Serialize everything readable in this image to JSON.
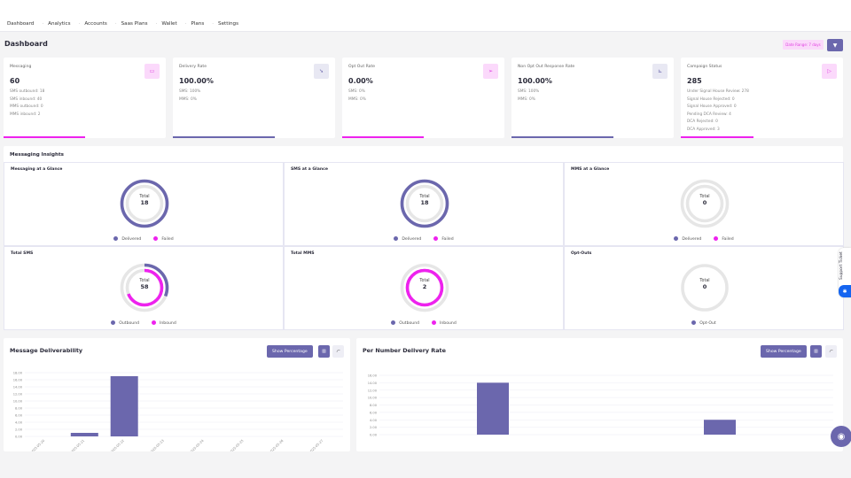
{
  "nav": [
    "Dashboard",
    "Analytics",
    "Accounts",
    "Saas Plans",
    "Wallet",
    "Plans",
    "Settings"
  ],
  "page_title": "Dashboard",
  "date_range": "Date Range: 7 days",
  "colors": {
    "primary": "#6b67ad",
    "accent": "#ee22ee",
    "track": "#e6e6e6"
  },
  "cards": [
    {
      "label": "Messaging",
      "value": "60",
      "lines": [
        "SMS outbound: 18",
        "SMS inbound: 40",
        "MMS outbound: 0",
        "MMS inbound: 2"
      ],
      "icon": "chat-icon",
      "bar_color": "#ee22ee",
      "bar_fill": 0.5
    },
    {
      "label": "Delivery Rate",
      "value": "100.00%",
      "lines": [
        "SMS: 100%",
        "MMS: 0%"
      ],
      "icon": "arrow-icon",
      "bar_color": "#6b67ad",
      "bar_fill": 0.63
    },
    {
      "label": "Opt Out Rate",
      "value": "0.00%",
      "lines": [
        "SMS: 0%",
        "MMS: 0%"
      ],
      "icon": "send-icon",
      "bar_color": "#ee22ee",
      "bar_fill": 0.5
    },
    {
      "label": "Non Opt Out Response Rate",
      "value": "100.00%",
      "lines": [
        "SMS: 100%",
        "MMS: 0%"
      ],
      "icon": "chart-icon",
      "bar_color": "#6b67ad",
      "bar_fill": 0.63
    },
    {
      "label": "Campaign Status",
      "value": "285",
      "lines": [
        "Under Signal House Review: 278",
        "Signal House Rejected: 0",
        "Signal House Approved: 0",
        "Pending DCA Review: 4",
        "DCA Rejected: 0",
        "DCA Approved: 3"
      ],
      "icon": "campaign-icon",
      "bar_color": "#ee22ee",
      "bar_fill": 0.45
    }
  ],
  "insights": {
    "title": "Messaging Insights",
    "total_label": "Total",
    "cells": [
      {
        "title": "Messaging at a Glance",
        "total": "18",
        "rings": [
          {
            "name": "Delivered",
            "value": 18,
            "color": "#6b67ad"
          },
          {
            "name": "Failed",
            "value": 0,
            "color": "#ee22ee"
          }
        ]
      },
      {
        "title": "SMS at a Glance",
        "total": "18",
        "rings": [
          {
            "name": "Delivered",
            "value": 18,
            "color": "#6b67ad"
          },
          {
            "name": "Failed",
            "value": 0,
            "color": "#ee22ee"
          }
        ]
      },
      {
        "title": "MMS at a Glance",
        "total": "0",
        "rings": [
          {
            "name": "Delivered",
            "value": 0,
            "color": "#6b67ad"
          },
          {
            "name": "Failed",
            "value": 0,
            "color": "#ee22ee"
          }
        ]
      },
      {
        "title": "Total SMS",
        "total": "58",
        "rings": [
          {
            "name": "Outbound",
            "value": 18,
            "color": "#6b67ad"
          },
          {
            "name": "Inbound",
            "value": 40,
            "color": "#ee22ee"
          }
        ]
      },
      {
        "title": "Total MMS",
        "total": "2",
        "rings": [
          {
            "name": "Outbound",
            "value": 0,
            "color": "#6b67ad"
          },
          {
            "name": "Inbound",
            "value": 2,
            "color": "#ee22ee"
          }
        ]
      },
      {
        "title": "Opt-Outs",
        "total": "0",
        "rings": [
          {
            "name": "Opt-Out",
            "value": 0,
            "color": "#6b67ad"
          }
        ]
      }
    ]
  },
  "show_percentage": "Show Percentage",
  "support_ticket": "Support Ticket",
  "chart_data": [
    {
      "type": "bar",
      "title": "Message Deliverability",
      "categories": [
        "2025-05-20",
        "2025-05-21",
        "2025-05-22",
        "2025-05-23",
        "2025-05-24",
        "2025-05-25",
        "2025-05-26",
        "2025-05-27"
      ],
      "values": [
        0,
        1,
        17,
        0,
        0,
        0,
        0,
        0
      ],
      "ylim": [
        0,
        18
      ],
      "yticks": [
        "0.00",
        "2.00",
        "4.00",
        "6.00",
        "8.00",
        "10.00",
        "12.00",
        "14.00",
        "16.00",
        "18.00"
      ],
      "grid": true,
      "color": "#6b67ad"
    },
    {
      "type": "bar",
      "title": "Per Number Delivery Rate",
      "categories": [
        "",
        ""
      ],
      "values": [
        14,
        4
      ],
      "ylim": [
        0,
        16
      ],
      "yticks": [
        "0.00",
        "2.00",
        "4.00",
        "6.00",
        "8.00",
        "10.00",
        "12.00",
        "14.00",
        "16.00"
      ],
      "grid": true,
      "color": "#6b67ad"
    }
  ]
}
